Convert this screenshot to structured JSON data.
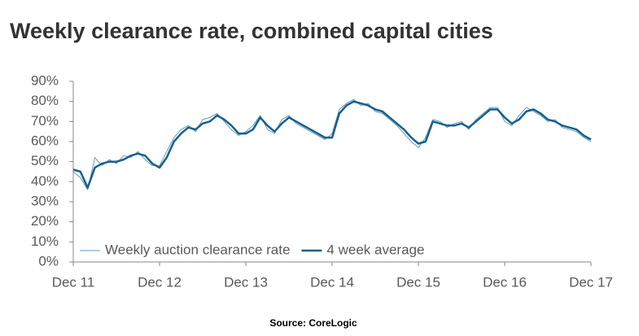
{
  "chart_data": {
    "type": "line",
    "title": "Weekly clearance rate, combined capital cities",
    "source": "Source: CoreLogic",
    "categories": [
      "Dec 11",
      null,
      null,
      null,
      null,
      null,
      null,
      null,
      null,
      null,
      null,
      null,
      "Dec 12",
      null,
      null,
      null,
      null,
      null,
      null,
      null,
      null,
      null,
      null,
      null,
      "Dec 13",
      null,
      null,
      null,
      null,
      null,
      null,
      null,
      null,
      null,
      null,
      null,
      "Dec 14",
      null,
      null,
      null,
      null,
      null,
      null,
      null,
      null,
      null,
      null,
      null,
      "Dec 15",
      null,
      null,
      null,
      null,
      null,
      null,
      null,
      null,
      null,
      null,
      null,
      "Dec 16",
      null,
      null,
      null,
      null,
      null,
      null,
      null,
      null,
      null,
      null,
      null,
      "Dec 17"
    ],
    "series": [
      {
        "name": "Weekly auction clearance rate",
        "color": "#5b9cc4",
        "width": 1,
        "values": [
          45,
          42,
          36,
          52,
          48,
          51,
          49,
          53,
          52,
          55,
          51,
          48,
          48,
          55,
          62,
          66,
          68,
          65,
          71,
          72,
          74,
          70,
          66,
          63,
          65,
          68,
          73,
          66,
          64,
          71,
          73,
          69,
          67,
          65,
          63,
          61,
          64,
          76,
          79,
          81,
          78,
          79,
          75,
          74,
          71,
          68,
          64,
          60,
          57,
          62,
          71,
          70,
          67,
          69,
          70,
          66,
          71,
          74,
          77,
          77,
          70,
          68,
          73,
          77,
          75,
          73,
          70,
          71,
          67,
          66,
          65,
          62,
          60
        ]
      },
      {
        "name": "4 week average",
        "color": "#1a5f8a",
        "width": 2.5,
        "values": [
          46,
          45,
          37,
          47,
          49,
          50,
          50,
          51,
          53,
          54,
          53,
          49,
          47,
          52,
          60,
          64,
          67,
          66,
          69,
          70,
          73,
          71,
          68,
          64,
          64,
          66,
          72,
          68,
          65,
          69,
          72,
          70,
          68,
          66,
          64,
          62,
          62,
          74,
          78,
          80,
          79,
          78,
          76,
          75,
          72,
          69,
          66,
          62,
          59,
          60,
          70,
          69,
          68,
          68,
          69,
          67,
          70,
          73,
          76,
          76,
          72,
          69,
          71,
          75,
          76,
          74,
          71,
          70,
          68,
          67,
          66,
          63,
          61
        ]
      }
    ],
    "ylim": [
      0,
      90
    ],
    "yticks": [
      {
        "value": 0,
        "label": "0%"
      },
      {
        "value": 10,
        "label": "10%"
      },
      {
        "value": 20,
        "label": "20%"
      },
      {
        "value": 30,
        "label": "30%"
      },
      {
        "value": 40,
        "label": "40%"
      },
      {
        "value": 50,
        "label": "50%"
      },
      {
        "value": 60,
        "label": "60%"
      },
      {
        "value": 70,
        "label": "70%"
      },
      {
        "value": 80,
        "label": "80%"
      },
      {
        "value": 90,
        "label": "90%"
      }
    ],
    "grid": false,
    "legend": "bottom-left"
  }
}
